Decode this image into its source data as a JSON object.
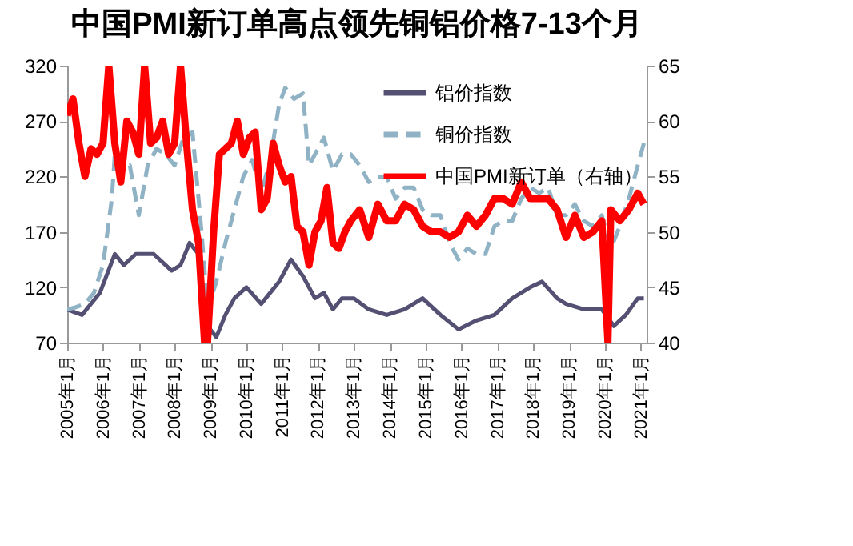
{
  "chart_data": {
    "type": "line",
    "title": "中国PMI新订单高点领先铜铝价格7-13个月",
    "xlim": [
      "2005-01",
      "2021-03"
    ],
    "xticks": [
      {
        "value": "2005-01",
        "label": "2005年1月"
      },
      {
        "value": "2006-01",
        "label": "2006年1月"
      },
      {
        "value": "2007-01",
        "label": "2007年1月"
      },
      {
        "value": "2008-01",
        "label": "2008年1月"
      },
      {
        "value": "2009-01",
        "label": "2009年1月"
      },
      {
        "value": "2010-01",
        "label": "2010年1月"
      },
      {
        "value": "2011-01",
        "label": "2011年1月"
      },
      {
        "value": "2012-01",
        "label": "2012年1月"
      },
      {
        "value": "2013-01",
        "label": "2013年1月"
      },
      {
        "value": "2014-01",
        "label": "2014年1月"
      },
      {
        "value": "2015-01",
        "label": "2015年1月"
      },
      {
        "value": "2016-01",
        "label": "2016年1月"
      },
      {
        "value": "2017-01",
        "label": "2017年1月"
      },
      {
        "value": "2018-01",
        "label": "2018年1月"
      },
      {
        "value": "2019-01",
        "label": "2019年1月"
      },
      {
        "value": "2020-01",
        "label": "2020年1月"
      },
      {
        "value": "2021-01",
        "label": "2021年1月"
      }
    ],
    "ylim": [
      70,
      320
    ],
    "yticks": [
      70,
      120,
      170,
      220,
      270,
      320
    ],
    "y2lim": [
      40,
      65
    ],
    "y2ticks": [
      40,
      45,
      50,
      55,
      60,
      65
    ],
    "legend": "top right",
    "grid": false,
    "series": [
      {
        "name": "铝价指数",
        "color": "#545073",
        "line_style": "solid",
        "x": [
          "2005-01",
          "2005-06",
          "2005-12",
          "2006-05",
          "2006-08",
          "2006-12",
          "2007-06",
          "2007-12",
          "2008-03",
          "2008-06",
          "2008-09",
          "2008-12",
          "2009-03",
          "2009-06",
          "2009-09",
          "2010-01",
          "2010-06",
          "2010-12",
          "2011-04",
          "2011-08",
          "2011-12",
          "2012-03",
          "2012-06",
          "2012-09",
          "2013-01",
          "2013-06",
          "2013-12",
          "2014-06",
          "2014-12",
          "2015-06",
          "2015-12",
          "2016-06",
          "2016-12",
          "2017-06",
          "2017-12",
          "2018-04",
          "2018-09",
          "2018-12",
          "2019-06",
          "2019-12",
          "2020-04",
          "2020-08",
          "2020-12",
          "2021-02"
        ],
        "values": [
          100,
          95,
          115,
          150,
          140,
          150,
          150,
          135,
          140,
          160,
          150,
          85,
          75,
          95,
          110,
          120,
          105,
          125,
          145,
          130,
          110,
          115,
          100,
          110,
          110,
          100,
          95,
          100,
          110,
          95,
          82,
          90,
          95,
          110,
          120,
          125,
          110,
          105,
          100,
          100,
          85,
          95,
          110,
          110
        ]
      },
      {
        "name": "铜价指数",
        "color": "#8fb2c4",
        "line_style": "dashed",
        "x": [
          "2005-01",
          "2005-04",
          "2005-07",
          "2005-10",
          "2006-01",
          "2006-04",
          "2006-05",
          "2006-07",
          "2006-10",
          "2007-01",
          "2007-04",
          "2007-07",
          "2007-10",
          "2008-01",
          "2008-04",
          "2008-07",
          "2008-10",
          "2008-12",
          "2009-03",
          "2009-06",
          "2009-09",
          "2009-12",
          "2010-03",
          "2010-06",
          "2010-09",
          "2010-12",
          "2011-02",
          "2011-05",
          "2011-08",
          "2011-10",
          "2012-01",
          "2012-03",
          "2012-06",
          "2012-09",
          "2012-12",
          "2013-03",
          "2013-06",
          "2013-09",
          "2013-12",
          "2014-03",
          "2014-06",
          "2014-09",
          "2014-12",
          "2015-03",
          "2015-06",
          "2015-09",
          "2015-12",
          "2016-03",
          "2016-06",
          "2016-09",
          "2016-12",
          "2017-03",
          "2017-06",
          "2017-09",
          "2017-12",
          "2018-03",
          "2018-06",
          "2018-09",
          "2018-12",
          "2019-03",
          "2019-06",
          "2019-09",
          "2019-12",
          "2020-03",
          "2020-06",
          "2020-09",
          "2020-12",
          "2021-02"
        ],
        "values": [
          100,
          102,
          105,
          115,
          140,
          200,
          240,
          225,
          230,
          185,
          230,
          245,
          240,
          230,
          255,
          260,
          170,
          100,
          125,
          160,
          190,
          220,
          235,
          205,
          235,
          285,
          300,
          290,
          295,
          230,
          245,
          255,
          225,
          240,
          240,
          230,
          215,
          220,
          220,
          200,
          210,
          210,
          190,
          185,
          185,
          160,
          145,
          155,
          150,
          150,
          175,
          180,
          180,
          200,
          210,
          205,
          210,
          185,
          185,
          195,
          180,
          175,
          185,
          155,
          175,
          200,
          230,
          250
        ]
      },
      {
        "name": "中国PMI新订单（右轴）",
        "color": "#ff0000",
        "line_style": "solid",
        "axis": "y2",
        "x": [
          "2005-01",
          "2005-03",
          "2005-05",
          "2005-07",
          "2005-09",
          "2005-11",
          "2006-01",
          "2006-03",
          "2006-05",
          "2006-07",
          "2006-09",
          "2006-11",
          "2007-01",
          "2007-03",
          "2007-05",
          "2007-07",
          "2007-09",
          "2007-11",
          "2008-01",
          "2008-03",
          "2008-05",
          "2008-07",
          "2008-09",
          "2008-11",
          "2008-12",
          "2009-02",
          "2009-04",
          "2009-06",
          "2009-08",
          "2009-10",
          "2009-12",
          "2010-02",
          "2010-04",
          "2010-06",
          "2010-08",
          "2010-10",
          "2010-12",
          "2011-02",
          "2011-04",
          "2011-06",
          "2011-08",
          "2011-10",
          "2011-12",
          "2012-02",
          "2012-04",
          "2012-06",
          "2012-08",
          "2012-10",
          "2012-12",
          "2013-03",
          "2013-06",
          "2013-09",
          "2013-12",
          "2014-03",
          "2014-06",
          "2014-09",
          "2014-12",
          "2015-03",
          "2015-06",
          "2015-09",
          "2015-12",
          "2016-03",
          "2016-06",
          "2016-09",
          "2016-12",
          "2017-03",
          "2017-06",
          "2017-09",
          "2017-12",
          "2018-03",
          "2018-06",
          "2018-09",
          "2018-12",
          "2019-03",
          "2019-06",
          "2019-09",
          "2019-12",
          "2020-02",
          "2020-03",
          "2020-06",
          "2020-09",
          "2020-12",
          "2021-01",
          "2021-02"
        ],
        "values": [
          60.5,
          62,
          58,
          55,
          57.5,
          57,
          58,
          65,
          58,
          54.5,
          60,
          59,
          57,
          65,
          58,
          58.5,
          60,
          57,
          58,
          65,
          58,
          52,
          49,
          40,
          40,
          50,
          57,
          57.5,
          58,
          60,
          57,
          58.5,
          59,
          52,
          53,
          58,
          56,
          54.5,
          55,
          50.5,
          50,
          47,
          50,
          51,
          54,
          49,
          48.5,
          50,
          51,
          52,
          49.5,
          52.5,
          51,
          51,
          52.5,
          52,
          50.5,
          50,
          50,
          49.5,
          50,
          51.5,
          50.5,
          51.5,
          53,
          53,
          52.5,
          54.5,
          53,
          53,
          53,
          52,
          49.5,
          51.5,
          49.5,
          50,
          51,
          40,
          52,
          51,
          52,
          53.5,
          53,
          52.5
        ]
      }
    ]
  }
}
